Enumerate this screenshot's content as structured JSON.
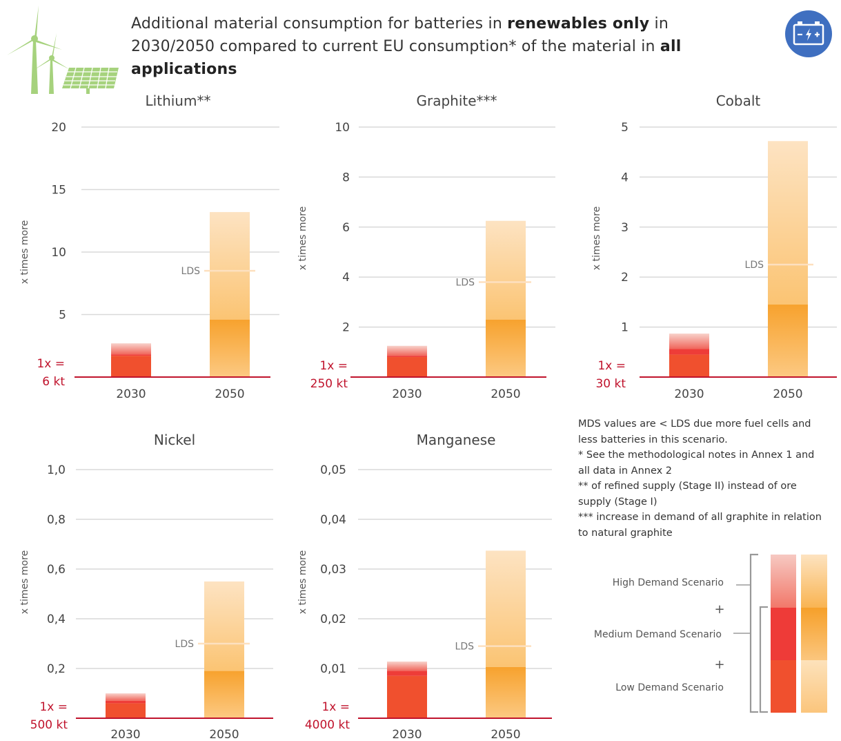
{
  "header": {
    "title_parts": [
      {
        "text": "Additional material consumption for batteries in ",
        "bold": false
      },
      {
        "text": "renewables only",
        "bold": true
      },
      {
        "text": " in 2030/2050 compared to current EU consumption* of the material in ",
        "bold": false
      },
      {
        "text": "all applications",
        "bold": true
      }
    ],
    "wind_icon": "wind-solar-icon",
    "battery_icon": "battery-icon"
  },
  "colors": {
    "grid": "#d9d9d9",
    "baseline": "#c0132c",
    "red_low": "#f0502e",
    "red_mid": "#ee3c38",
    "red_high": "#f6b3aa",
    "orange_low": "#fbc47c",
    "orange_mid": "#f7a22e",
    "orange_high": "#fde0b7",
    "icon_green": "#a6d27d",
    "icon_blue": "#3f6fc0"
  },
  "chart_data": [
    {
      "type": "bar",
      "title": "Lithium**",
      "ylabel": "x times more",
      "ylim": [
        0,
        20
      ],
      "yticks": [
        "5",
        "10",
        "15",
        "20"
      ],
      "ytick_values": [
        5,
        10,
        15,
        20
      ],
      "categories": [
        "2030",
        "2050"
      ],
      "baseline_label": [
        "1x =",
        "6 kt"
      ],
      "lds_label": "LDS",
      "series": [
        {
          "name": "Low Demand Scenario",
          "values": [
            1.7,
            4.6
          ]
        },
        {
          "name": "Medium Demand Scenario",
          "values": [
            1.8,
            8.5
          ]
        },
        {
          "name": "High Demand Scenario",
          "values": [
            2.7,
            13.2
          ]
        }
      ]
    },
    {
      "type": "bar",
      "title": "Graphite***",
      "ylabel": "x times more",
      "ylim": [
        0,
        10
      ],
      "yticks": [
        "2",
        "4",
        "6",
        "8",
        "10"
      ],
      "ytick_values": [
        2,
        4,
        6,
        8,
        10
      ],
      "categories": [
        "2030",
        "2050"
      ],
      "baseline_label": [
        "1x =",
        "250 kt"
      ],
      "lds_label": "LDS",
      "series": [
        {
          "name": "Low Demand Scenario",
          "values": [
            0.8,
            2.3
          ]
        },
        {
          "name": "Medium Demand Scenario",
          "values": [
            0.85,
            3.8
          ]
        },
        {
          "name": "High Demand Scenario",
          "values": [
            1.25,
            6.25
          ]
        }
      ]
    },
    {
      "type": "bar",
      "title": "Cobalt",
      "ylabel": "x times more",
      "ylim": [
        0,
        5
      ],
      "yticks": [
        "1",
        "2",
        "3",
        "4",
        "5"
      ],
      "ytick_values": [
        1,
        2,
        3,
        4,
        5
      ],
      "categories": [
        "2030",
        "2050"
      ],
      "baseline_label": [
        "1x =",
        "30 kt"
      ],
      "lds_label": "LDS",
      "series": [
        {
          "name": "Low Demand Scenario",
          "values": [
            0.45,
            1.45
          ]
        },
        {
          "name": "Medium Demand Scenario",
          "values": [
            0.56,
            2.25
          ]
        },
        {
          "name": "High Demand Scenario",
          "values": [
            0.87,
            4.72
          ]
        }
      ]
    },
    {
      "type": "bar",
      "title": "Nickel",
      "ylabel": "x times more",
      "ylim": [
        0,
        1.0
      ],
      "yticks": [
        "0,2",
        "0,4",
        "0,6",
        "0,8",
        "1,0"
      ],
      "ytick_values": [
        0.2,
        0.4,
        0.6,
        0.8,
        1.0
      ],
      "categories": [
        "2030",
        "2050"
      ],
      "baseline_label": [
        "1x =",
        "500 kt"
      ],
      "lds_label": "LDS",
      "series": [
        {
          "name": "Low Demand Scenario",
          "values": [
            0.06,
            0.19
          ]
        },
        {
          "name": "Medium Demand Scenario",
          "values": [
            0.07,
            0.3
          ]
        },
        {
          "name": "High Demand Scenario",
          "values": [
            0.1,
            0.55
          ]
        }
      ]
    },
    {
      "type": "bar",
      "title": "Manganese",
      "ylabel": "x times more",
      "ylim": [
        0,
        0.05
      ],
      "yticks": [
        "0,01",
        "0,02",
        "0,03",
        "0,04",
        "0,05"
      ],
      "ytick_values": [
        0.01,
        0.02,
        0.03,
        0.04,
        0.05
      ],
      "categories": [
        "2030",
        "2050"
      ],
      "baseline_label": [
        "1x =",
        "4000 kt"
      ],
      "lds_label": "LDS",
      "series": [
        {
          "name": "Low Demand Scenario",
          "values": [
            0.0085,
            0.0103
          ]
        },
        {
          "name": "Medium Demand Scenario",
          "values": [
            0.0095,
            0.0145
          ]
        },
        {
          "name": "High Demand Scenario",
          "values": [
            0.0114,
            0.0337
          ]
        }
      ]
    }
  ],
  "notes": [
    "MDS values are < LDS due more fuel cells and less batteries in this scenario.",
    "* See the methodological notes in Annex 1 and all data in Annex 2",
    "** of refined supply (Stage II) instead of ore supply (Stage I)",
    "*** increase in demand of all graphite in relation to natural graphite"
  ],
  "legend": {
    "high": "High Demand Scenario",
    "plus1": "+",
    "medium": "Medium Demand Scenario",
    "plus2": "+",
    "low": "Low Demand Scenario"
  }
}
